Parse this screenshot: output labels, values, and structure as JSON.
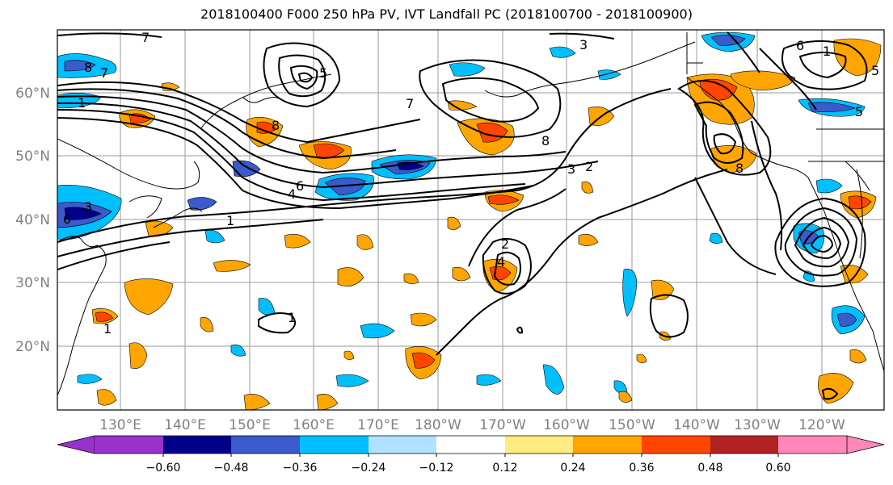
{
  "title": "2018100400 F000 250 hPa PV, IVT Landfall PC (2018100700 - 2018100900)",
  "map": {
    "lat_range": [
      10,
      70
    ],
    "lon_range": [
      "120°E",
      "110°W"
    ],
    "lat_labels": [
      "60°N",
      "50°N",
      "40°N",
      "30°N",
      "20°N"
    ],
    "lon_labels": [
      "130°E",
      "140°E",
      "150°E",
      "160°E",
      "170°E",
      "180°W",
      "170°W",
      "160°W",
      "150°W",
      "140°W",
      "130°W",
      "120°W"
    ],
    "grid": true,
    "contour_labels": [
      "7",
      "8",
      "7",
      "1",
      "3",
      "6",
      "5",
      "3",
      "7",
      "8",
      "6",
      "4",
      "1",
      "3",
      "2",
      "8",
      "8",
      "6",
      "5",
      "5",
      "1",
      "2",
      "4",
      "1",
      "1"
    ]
  },
  "colorbar": {
    "tick_labels": [
      "−0.60",
      "−0.48",
      "−0.36",
      "−0.24",
      "−0.12",
      "0.12",
      "0.24",
      "0.36",
      "0.48",
      "0.60"
    ],
    "colors": [
      "#9932cc",
      "#00008b",
      "#3a5bcc",
      "#00bfff",
      "#b0e2ff",
      "#ffffff",
      "#ffeb80",
      "#ffa500",
      "#ff4500",
      "#b22222",
      "#ff88b8"
    ],
    "extend": "both"
  }
}
